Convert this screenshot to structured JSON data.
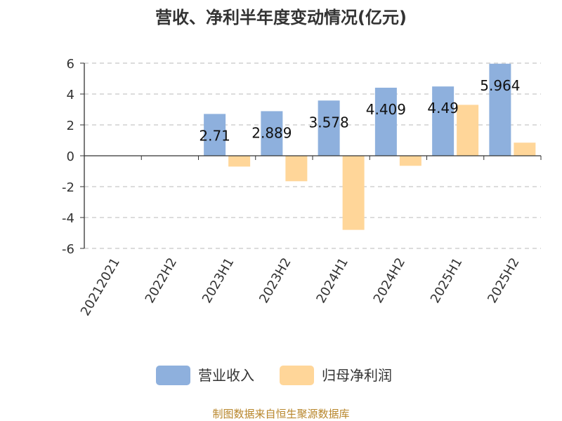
{
  "chart_data": {
    "type": "bar",
    "title": "营收、净利半年度变动情况(亿元)",
    "categories": [
      "20212021",
      "2022H2",
      "2023H1",
      "2023H2",
      "2024H1",
      "2024H2",
      "2025H1",
      "2025H2"
    ],
    "series": [
      {
        "name": "营业收入",
        "color": "#8eb0dd",
        "values": [
          null,
          null,
          2.71,
          2.889,
          3.578,
          4.409,
          4.49,
          5.964
        ],
        "labels": [
          "",
          "",
          "2.71",
          "2.889",
          "3.578",
          "4.409",
          "4.49",
          "5.964"
        ]
      },
      {
        "name": "归母净利润",
        "color": "#ffd699",
        "values": [
          null,
          null,
          -0.7,
          -1.65,
          -4.8,
          -0.65,
          3.3,
          0.85
        ]
      }
    ],
    "yticks": [
      "-6",
      "-4",
      "-2",
      "0",
      "2",
      "4",
      "6"
    ],
    "ylim": [
      -6,
      6
    ],
    "grid": true,
    "legend": "bottom"
  },
  "source": "制图数据来自恒生聚源数据库"
}
